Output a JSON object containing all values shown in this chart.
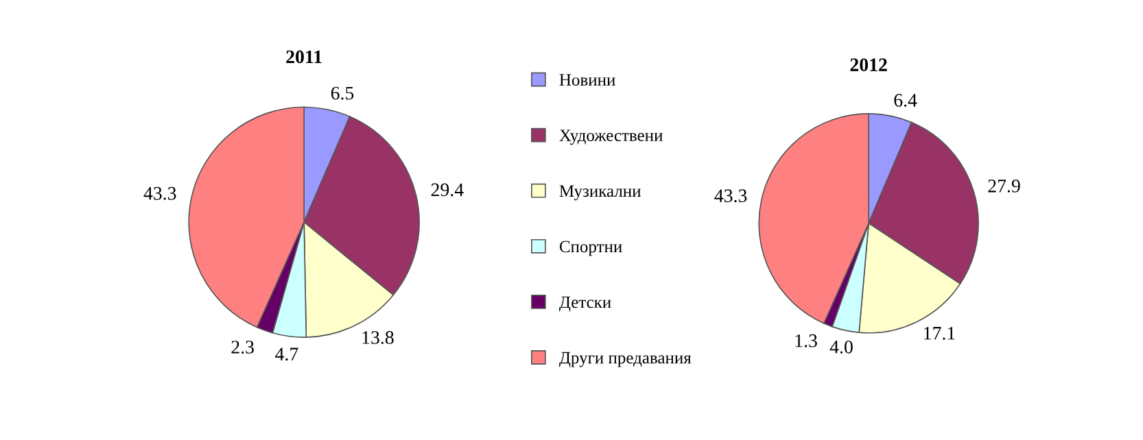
{
  "chart_data": [
    {
      "type": "pie",
      "title": "2011",
      "categories": [
        "Новини",
        "Художествени",
        "Музикални",
        "Спортни",
        "Детски",
        "Други предавания"
      ],
      "values": [
        6.5,
        29.4,
        13.8,
        4.7,
        2.3,
        43.3
      ],
      "value_labels": [
        "6.5",
        "29.4",
        "13.8",
        "4.7",
        "2.3",
        "43.3"
      ],
      "colors": [
        "#9999ff",
        "#993366",
        "#ffffcc",
        "#ccffff",
        "#660066",
        "#ff8080"
      ],
      "legend": "right"
    },
    {
      "type": "pie",
      "title": "2012",
      "values": [
        6.4,
        27.9,
        17.1,
        4.0,
        1.3,
        43.3
      ],
      "value_labels": [
        "6.4",
        "27.9",
        "17.1",
        "4.0",
        "1.3",
        "43.3"
      ],
      "colors": [
        "#9999ff",
        "#993366",
        "#ffffcc",
        "#ccffff",
        "#660066",
        "#ff8080"
      ]
    }
  ]
}
